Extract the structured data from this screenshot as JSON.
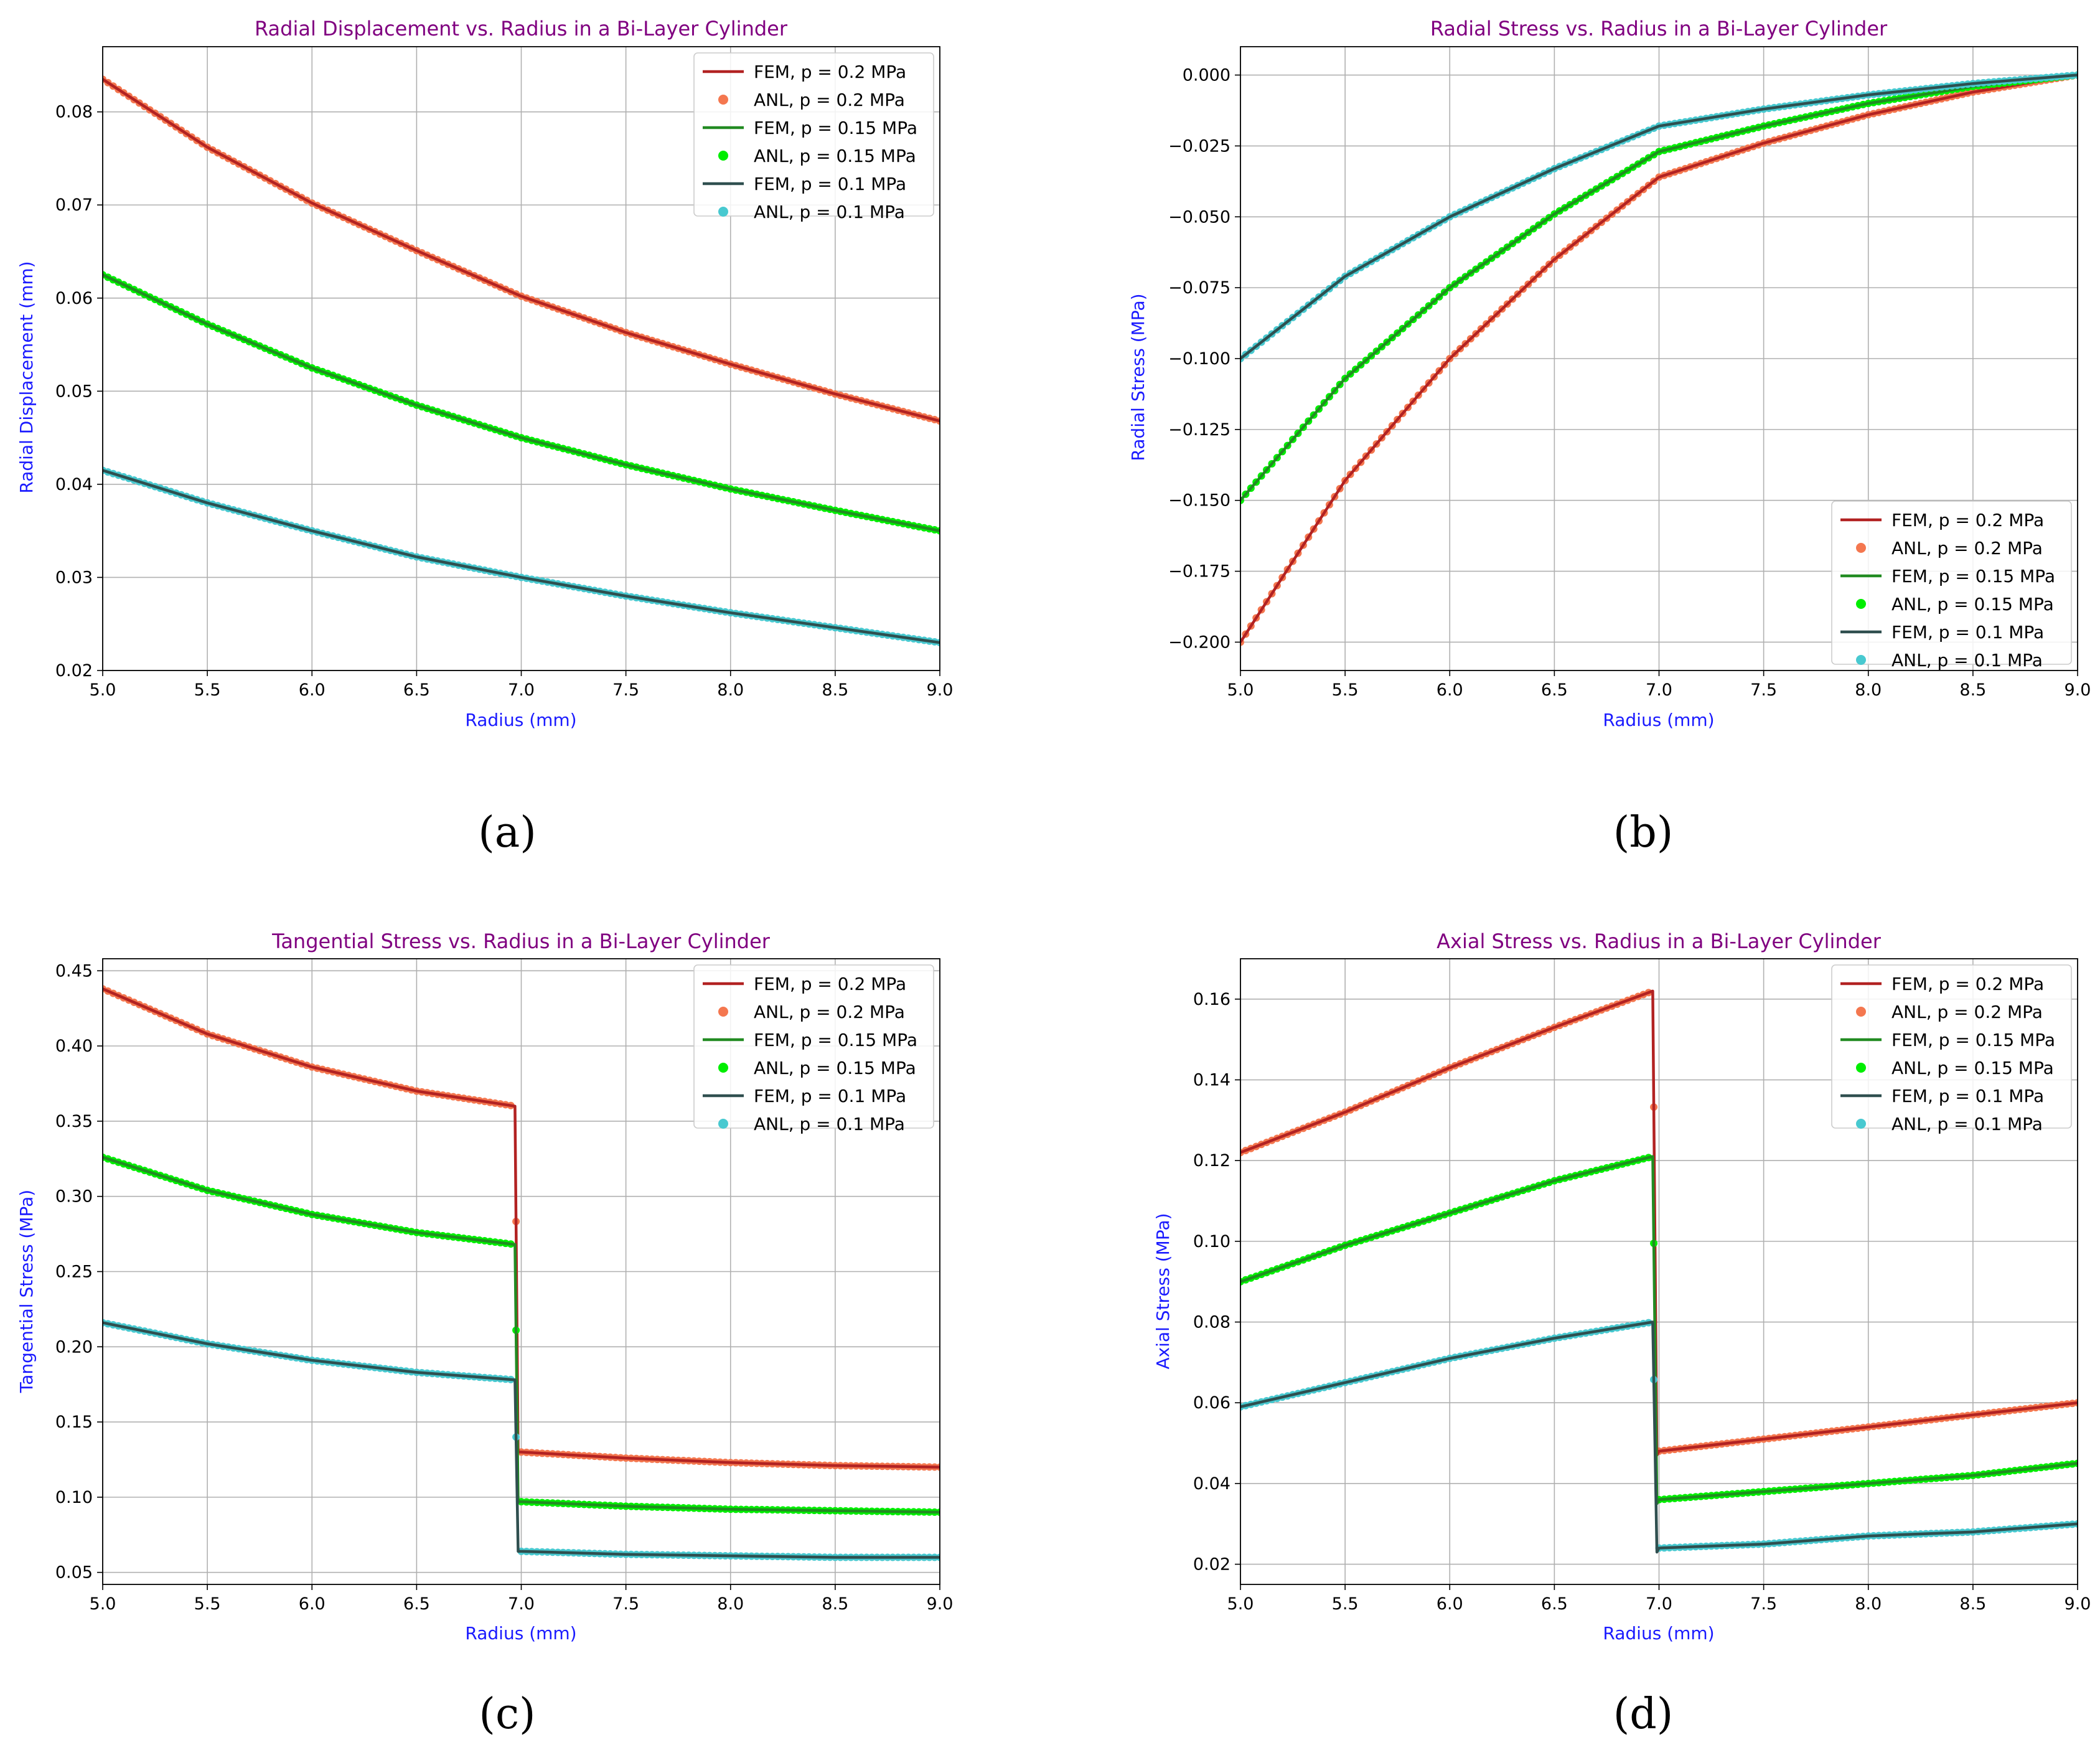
{
  "panels": [
    {
      "id": "a",
      "label": "(a)",
      "chart_data": {
        "type": "line",
        "title": "Radial Displacement vs. Radius in a Bi-Layer Cylinder",
        "xlabel": "Radius (mm)",
        "ylabel": "Radial Displacement (mm)",
        "xlim": [
          5.0,
          9.0
        ],
        "ylim": [
          0.02,
          0.087
        ],
        "xticks": [
          5.0,
          5.5,
          6.0,
          6.5,
          7.0,
          7.5,
          8.0,
          8.5,
          9.0
        ],
        "xtick_labels": [
          "5.0",
          "5.5",
          "6.0",
          "6.5",
          "7.0",
          "7.5",
          "8.0",
          "8.5",
          "9.0"
        ],
        "yticks": [
          0.02,
          0.03,
          0.04,
          0.05,
          0.06,
          0.07,
          0.08
        ],
        "ytick_labels": [
          "0.02",
          "0.03",
          "0.04",
          "0.05",
          "0.06",
          "0.07",
          "0.08"
        ],
        "grid": true,
        "legend_position": "top-right",
        "legend": [
          {
            "label": "FEM, p = 0.2 MPa",
            "kind": "line",
            "color": "#b22222"
          },
          {
            "label": "ANL, p = 0.2 MPa",
            "kind": "marker",
            "color": "#f4774f"
          },
          {
            "label": "FEM, p = 0.15 MPa",
            "kind": "line",
            "color": "#228b22"
          },
          {
            "label": "ANL, p = 0.15 MPa",
            "kind": "marker",
            "color": "#00ee00"
          },
          {
            "label": "FEM, p = 0.1 MPa",
            "kind": "line",
            "color": "#2f4f4f"
          },
          {
            "label": "ANL, p = 0.1 MPa",
            "kind": "marker",
            "color": "#48c9d0"
          }
        ],
        "series": [
          {
            "pressure_mpa": 0.2,
            "color_fem": "#b22222",
            "color_anl": "#f4774f",
            "x": [
              5.0,
              5.5,
              6.0,
              6.5,
              7.0,
              7.5,
              8.0,
              8.5,
              9.0
            ],
            "y": [
              0.0835,
              0.0762,
              0.0702,
              0.0651,
              0.0602,
              0.0563,
              0.0529,
              0.0497,
              0.0468
            ]
          },
          {
            "pressure_mpa": 0.15,
            "color_fem": "#228b22",
            "color_anl": "#00ee00",
            "x": [
              5.0,
              5.5,
              6.0,
              6.5,
              7.0,
              7.5,
              8.0,
              8.5,
              9.0
            ],
            "y": [
              0.0625,
              0.0572,
              0.0525,
              0.0485,
              0.045,
              0.0421,
              0.0395,
              0.0372,
              0.035
            ]
          },
          {
            "pressure_mpa": 0.1,
            "color_fem": "#2f4f4f",
            "color_anl": "#48c9d0",
            "x": [
              5.0,
              5.5,
              6.0,
              6.5,
              7.0,
              7.5,
              8.0,
              8.5,
              9.0
            ],
            "y": [
              0.0415,
              0.038,
              0.035,
              0.0322,
              0.03,
              0.028,
              0.0262,
              0.0246,
              0.023
            ]
          }
        ]
      }
    },
    {
      "id": "b",
      "label": "(b)",
      "chart_data": {
        "type": "line",
        "title": "Radial Stress vs. Radius in a Bi-Layer Cylinder",
        "xlabel": "Radius (mm)",
        "ylabel": "Radial Stress (MPa)",
        "xlim": [
          5.0,
          9.0
        ],
        "ylim": [
          -0.21,
          0.01
        ],
        "xticks": [
          5.0,
          5.5,
          6.0,
          6.5,
          7.0,
          7.5,
          8.0,
          8.5,
          9.0
        ],
        "xtick_labels": [
          "5.0",
          "5.5",
          "6.0",
          "6.5",
          "7.0",
          "7.5",
          "8.0",
          "8.5",
          "9.0"
        ],
        "yticks": [
          0.0,
          -0.025,
          -0.05,
          -0.075,
          -0.1,
          -0.125,
          -0.15,
          -0.175,
          -0.2
        ],
        "ytick_labels": [
          "0.000",
          "−0.025",
          "−0.050",
          "−0.075",
          "−0.100",
          "−0.125",
          "−0.150",
          "−0.175",
          "−0.200"
        ],
        "grid": true,
        "legend_position": "bottom-right",
        "legend": [
          {
            "label": "FEM, p = 0.2 MPa",
            "kind": "line",
            "color": "#b22222"
          },
          {
            "label": "ANL, p = 0.2 MPa",
            "kind": "marker",
            "color": "#f4774f"
          },
          {
            "label": "FEM, p = 0.15 MPa",
            "kind": "line",
            "color": "#228b22"
          },
          {
            "label": "ANL, p = 0.15 MPa",
            "kind": "marker",
            "color": "#00ee00"
          },
          {
            "label": "FEM, p = 0.1 MPa",
            "kind": "line",
            "color": "#2f4f4f"
          },
          {
            "label": "ANL, p = 0.1 MPa",
            "kind": "marker",
            "color": "#48c9d0"
          }
        ],
        "series": [
          {
            "pressure_mpa": 0.2,
            "color_fem": "#b22222",
            "color_anl": "#f4774f",
            "x": [
              5.0,
              5.5,
              6.0,
              6.5,
              7.0,
              7.5,
              8.0,
              8.5,
              9.0
            ],
            "y": [
              -0.2,
              -0.143,
              -0.1,
              -0.065,
              -0.036,
              -0.024,
              -0.014,
              -0.006,
              0.0
            ]
          },
          {
            "pressure_mpa": 0.15,
            "color_fem": "#228b22",
            "color_anl": "#00ee00",
            "x": [
              5.0,
              5.5,
              6.0,
              6.5,
              7.0,
              7.5,
              8.0,
              8.5,
              9.0
            ],
            "y": [
              -0.15,
              -0.107,
              -0.075,
              -0.049,
              -0.027,
              -0.018,
              -0.01,
              -0.004,
              0.0
            ]
          },
          {
            "pressure_mpa": 0.1,
            "color_fem": "#2f4f4f",
            "color_anl": "#48c9d0",
            "x": [
              5.0,
              5.5,
              6.0,
              6.5,
              7.0,
              7.5,
              8.0,
              8.5,
              9.0
            ],
            "y": [
              -0.1,
              -0.071,
              -0.05,
              -0.033,
              -0.018,
              -0.012,
              -0.007,
              -0.003,
              0.0
            ]
          }
        ]
      }
    },
    {
      "id": "c",
      "label": "(c)",
      "chart_data": {
        "type": "line",
        "title": "Tangential Stress vs. Radius in a Bi-Layer Cylinder",
        "xlabel": "Radius (mm)",
        "ylabel": "Tangential Stress (MPa)",
        "xlim": [
          5.0,
          9.0
        ],
        "ylim": [
          0.042,
          0.458
        ],
        "xticks": [
          5.0,
          5.5,
          6.0,
          6.5,
          7.0,
          7.5,
          8.0,
          8.5,
          9.0
        ],
        "xtick_labels": [
          "5.0",
          "5.5",
          "6.0",
          "6.5",
          "7.0",
          "7.5",
          "8.0",
          "8.5",
          "9.0"
        ],
        "yticks": [
          0.05,
          0.1,
          0.15,
          0.2,
          0.25,
          0.3,
          0.35,
          0.4,
          0.45
        ],
        "ytick_labels": [
          "0.05",
          "0.10",
          "0.15",
          "0.20",
          "0.25",
          "0.30",
          "0.35",
          "0.40",
          "0.45"
        ],
        "grid": true,
        "legend_position": "top-right",
        "legend": [
          {
            "label": "FEM, p = 0.2 MPa",
            "kind": "line",
            "color": "#b22222"
          },
          {
            "label": "ANL, p = 0.2 MPa",
            "kind": "marker",
            "color": "#f4774f"
          },
          {
            "label": "FEM, p = 0.15 MPa",
            "kind": "line",
            "color": "#228b22"
          },
          {
            "label": "ANL, p = 0.15 MPa",
            "kind": "marker",
            "color": "#00ee00"
          },
          {
            "label": "FEM, p = 0.1 MPa",
            "kind": "line",
            "color": "#2f4f4f"
          },
          {
            "label": "ANL, p = 0.1 MPa",
            "kind": "marker",
            "color": "#48c9d0"
          }
        ],
        "series": [
          {
            "pressure_mpa": 0.2,
            "color_fem": "#b22222",
            "color_anl": "#f4774f",
            "x": [
              5.0,
              5.5,
              6.0,
              6.5,
              6.97,
              6.985,
              7.0,
              7.5,
              8.0,
              8.5,
              9.0
            ],
            "y": [
              0.438,
              0.408,
              0.386,
              0.37,
              0.36,
              0.13,
              0.13,
              0.126,
              0.123,
              0.121,
              0.12
            ]
          },
          {
            "pressure_mpa": 0.15,
            "color_fem": "#228b22",
            "color_anl": "#00ee00",
            "x": [
              5.0,
              5.5,
              6.0,
              6.5,
              6.97,
              6.985,
              7.0,
              7.5,
              8.0,
              8.5,
              9.0
            ],
            "y": [
              0.326,
              0.304,
              0.288,
              0.276,
              0.268,
              0.097,
              0.097,
              0.094,
              0.092,
              0.091,
              0.09
            ]
          },
          {
            "pressure_mpa": 0.1,
            "color_fem": "#2f4f4f",
            "color_anl": "#48c9d0",
            "x": [
              5.0,
              5.5,
              6.0,
              6.5,
              6.97,
              6.985,
              7.0,
              7.5,
              8.0,
              8.5,
              9.0
            ],
            "y": [
              0.216,
              0.202,
              0.191,
              0.183,
              0.178,
              0.064,
              0.064,
              0.062,
              0.061,
              0.06,
              0.06
            ]
          }
        ]
      }
    },
    {
      "id": "d",
      "label": "(d)",
      "chart_data": {
        "type": "line",
        "title": "Axial Stress vs. Radius in a Bi-Layer Cylinder",
        "xlabel": "Radius (mm)",
        "ylabel": "Axial Stress (MPa)",
        "xlim": [
          5.0,
          9.0
        ],
        "ylim": [
          0.015,
          0.17
        ],
        "xticks": [
          5.0,
          5.5,
          6.0,
          6.5,
          7.0,
          7.5,
          8.0,
          8.5,
          9.0
        ],
        "xtick_labels": [
          "5.0",
          "5.5",
          "6.0",
          "6.5",
          "7.0",
          "7.5",
          "8.0",
          "8.5",
          "9.0"
        ],
        "yticks": [
          0.02,
          0.04,
          0.06,
          0.08,
          0.1,
          0.12,
          0.14,
          0.16
        ],
        "ytick_labels": [
          "0.02",
          "0.04",
          "0.06",
          "0.08",
          "0.10",
          "0.12",
          "0.14",
          "0.16"
        ],
        "grid": true,
        "legend_position": "top-right",
        "legend": [
          {
            "label": "FEM, p = 0.2 MPa",
            "kind": "line",
            "color": "#b22222"
          },
          {
            "label": "ANL, p = 0.2 MPa",
            "kind": "marker",
            "color": "#f4774f"
          },
          {
            "label": "FEM, p = 0.15 MPa",
            "kind": "line",
            "color": "#228b22"
          },
          {
            "label": "ANL, p = 0.15 MPa",
            "kind": "marker",
            "color": "#00ee00"
          },
          {
            "label": "FEM, p = 0.1 MPa",
            "kind": "line",
            "color": "#2f4f4f"
          },
          {
            "label": "ANL, p = 0.1 MPa",
            "kind": "marker",
            "color": "#48c9d0"
          }
        ],
        "series": [
          {
            "pressure_mpa": 0.2,
            "color_fem": "#b22222",
            "color_anl": "#f4774f",
            "x": [
              5.0,
              5.5,
              6.0,
              6.5,
              6.97,
              6.99,
              7.0,
              7.5,
              8.0,
              8.5,
              9.0
            ],
            "y": [
              0.122,
              0.132,
              0.143,
              0.153,
              0.162,
              0.047,
              0.048,
              0.051,
              0.054,
              0.057,
              0.06
            ]
          },
          {
            "pressure_mpa": 0.15,
            "color_fem": "#228b22",
            "color_anl": "#00ee00",
            "x": [
              5.0,
              5.5,
              6.0,
              6.5,
              6.97,
              6.99,
              7.0,
              7.5,
              8.0,
              8.5,
              9.0
            ],
            "y": [
              0.09,
              0.099,
              0.107,
              0.115,
              0.121,
              0.035,
              0.036,
              0.038,
              0.04,
              0.042,
              0.045
            ]
          },
          {
            "pressure_mpa": 0.1,
            "color_fem": "#2f4f4f",
            "color_anl": "#48c9d0",
            "x": [
              5.0,
              5.5,
              6.0,
              6.5,
              6.97,
              6.99,
              7.0,
              7.5,
              8.0,
              8.5,
              9.0
            ],
            "y": [
              0.059,
              0.065,
              0.071,
              0.076,
              0.08,
              0.023,
              0.024,
              0.025,
              0.027,
              0.028,
              0.03
            ]
          }
        ]
      }
    }
  ]
}
